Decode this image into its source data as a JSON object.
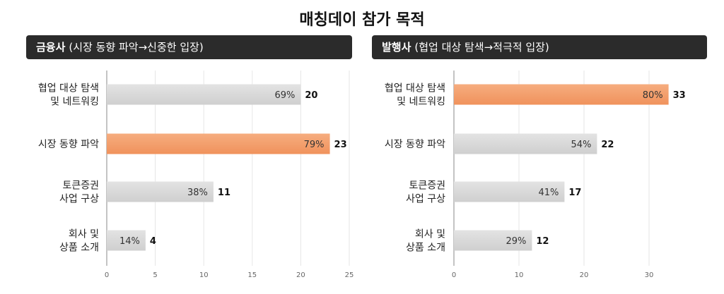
{
  "title": "매칭데이 참가 목적",
  "colors": {
    "highlight": "#f0925c",
    "normal": "#cfcfcf",
    "header_bg": "#2b2b2b"
  },
  "chart_data": [
    {
      "type": "bar",
      "orientation": "horizontal",
      "header_strong": "금융사",
      "header_rest": "(시장 동향 파악→신중한 입장)",
      "categories": [
        [
          "협업 대상 탐색",
          "및 네트워킹"
        ],
        [
          "시장 동향 파악"
        ],
        [
          "토큰증권",
          "사업 구상"
        ],
        [
          "회사 및",
          "상품 소개"
        ]
      ],
      "values": [
        20,
        23,
        11,
        4
      ],
      "percent_labels": [
        "69%",
        "79%",
        "38%",
        "14%"
      ],
      "highlight_index": 1,
      "xlim": [
        0,
        25
      ],
      "xticks": [
        0,
        5,
        10,
        15,
        20,
        25
      ],
      "grid": true
    },
    {
      "type": "bar",
      "orientation": "horizontal",
      "header_strong": "발행사",
      "header_rest": "(협업 대상 탐색→적극적 입장)",
      "categories": [
        [
          "협업 대상 탐색",
          "및 네트워킹"
        ],
        [
          "시장 동향 파악"
        ],
        [
          "토큰증권",
          "사업 구상"
        ],
        [
          "회사 및",
          "상품 소개"
        ]
      ],
      "values": [
        33,
        22,
        17,
        12
      ],
      "percent_labels": [
        "80%",
        "54%",
        "41%",
        "29%"
      ],
      "highlight_index": 0,
      "xlim": [
        0,
        35
      ],
      "xticks": [
        0,
        10,
        20,
        30
      ],
      "grid": true
    }
  ]
}
